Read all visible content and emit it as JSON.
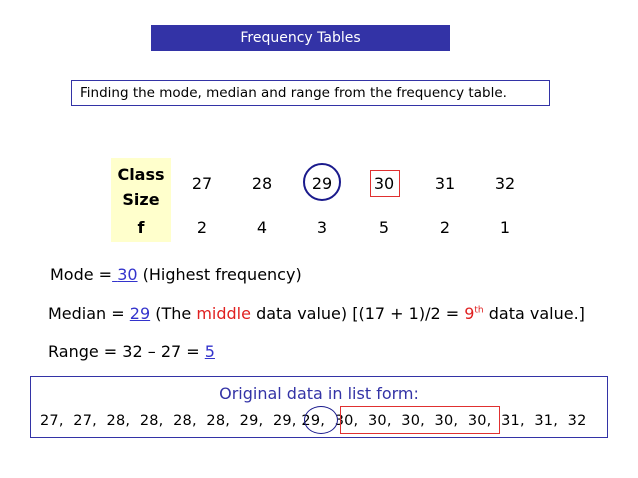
{
  "title": "Frequency Tables",
  "subtitle": "Finding the mode, median and range from the frequency table.",
  "table": {
    "header_line1": "Class",
    "header_line2": "Size",
    "f_label": "f",
    "sizes": [
      "27",
      "28",
      "29",
      "30",
      "31",
      "32"
    ],
    "freqs": [
      "2",
      "4",
      "3",
      "5",
      "2",
      "1"
    ]
  },
  "mode": {
    "prefix": "Mode =",
    "value": "30",
    "suffix": "(Highest frequency)"
  },
  "median": {
    "prefix": "Median =",
    "value": "29",
    "part1": "(The",
    "middle": "middle",
    "part2": "data value) [(17 + 1)/2 =",
    "nine": "9",
    "th": "th",
    "part3": "data value.]"
  },
  "range": {
    "prefix": "Range = 32 – 27 =",
    "value": "5"
  },
  "original": {
    "title": "Original data in list form:",
    "list_a": "27,  27,  28,  28,  28,  28,  29,  29, ",
    "list_b": "29",
    "list_c": ",  30,  30,  30,  30,  30",
    "list_d": ",  31,  31,  32"
  },
  "colors": {
    "accent": "#3333a6",
    "highlight_bg": "#ffffcc",
    "red": "#e02020"
  }
}
